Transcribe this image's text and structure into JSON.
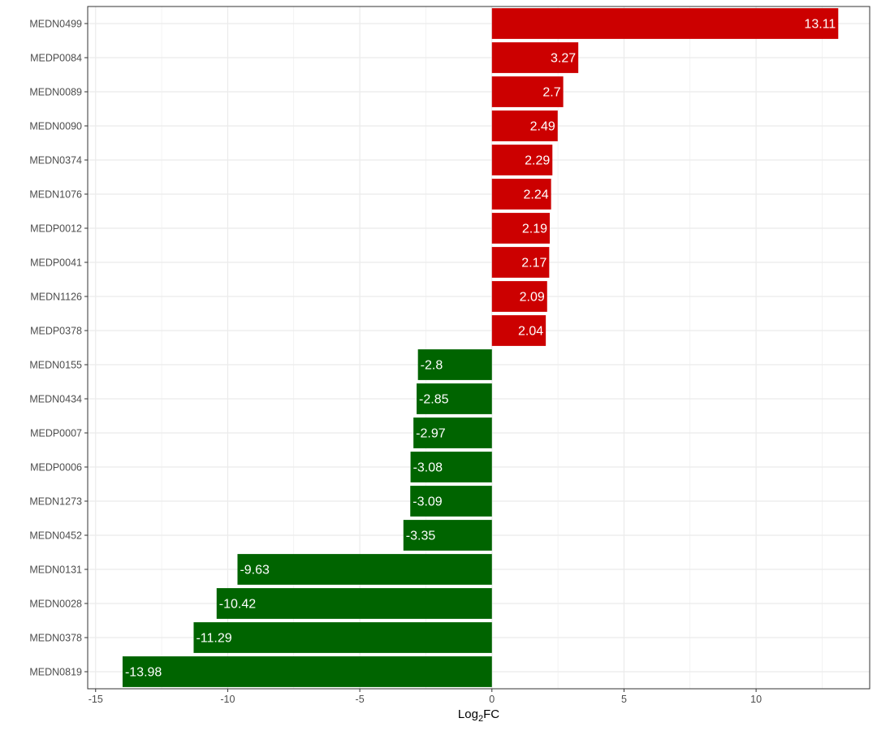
{
  "chart_data": {
    "type": "bar",
    "orientation": "horizontal",
    "categories": [
      "MEDN0499",
      "MEDP0084",
      "MEDN0089",
      "MEDN0090",
      "MEDN0374",
      "MEDN1076",
      "MEDP0012",
      "MEDP0041",
      "MEDN1126",
      "MEDP0378",
      "MEDN0155",
      "MEDN0434",
      "MEDP0007",
      "MEDP0006",
      "MEDN1273",
      "MEDN0452",
      "MEDN0131",
      "MEDN0028",
      "MEDN0378",
      "MEDN0819"
    ],
    "values": [
      13.11,
      3.27,
      2.7,
      2.49,
      2.29,
      2.24,
      2.19,
      2.17,
      2.09,
      2.04,
      -2.8,
      -2.85,
      -2.97,
      -3.08,
      -3.09,
      -3.35,
      -9.63,
      -10.42,
      -11.29,
      -13.98
    ],
    "value_labels": [
      "13.11",
      "3.27",
      "2.7",
      "2.49",
      "2.29",
      "2.24",
      "2.19",
      "2.17",
      "2.09",
      "2.04",
      "-2.8",
      "-2.85",
      "-2.97",
      "-3.08",
      "-3.09",
      "-3.35",
      "-9.63",
      "-10.42",
      "-11.29",
      "-13.98"
    ],
    "xlabel_main": "Log",
    "xlabel_sub": "2",
    "xlabel_tail": "FC",
    "xlim": [
      -15.3,
      14.3
    ],
    "xticks": [
      -15,
      -10,
      -5,
      0,
      5,
      10
    ],
    "xtick_labels": [
      "-15",
      "-10",
      "-5",
      "0",
      "5",
      "10"
    ],
    "grid": true,
    "colors": {
      "positive": "#cc0000",
      "negative": "#006400",
      "grid": "#ebebeb",
      "panel_border": "#333333"
    }
  }
}
